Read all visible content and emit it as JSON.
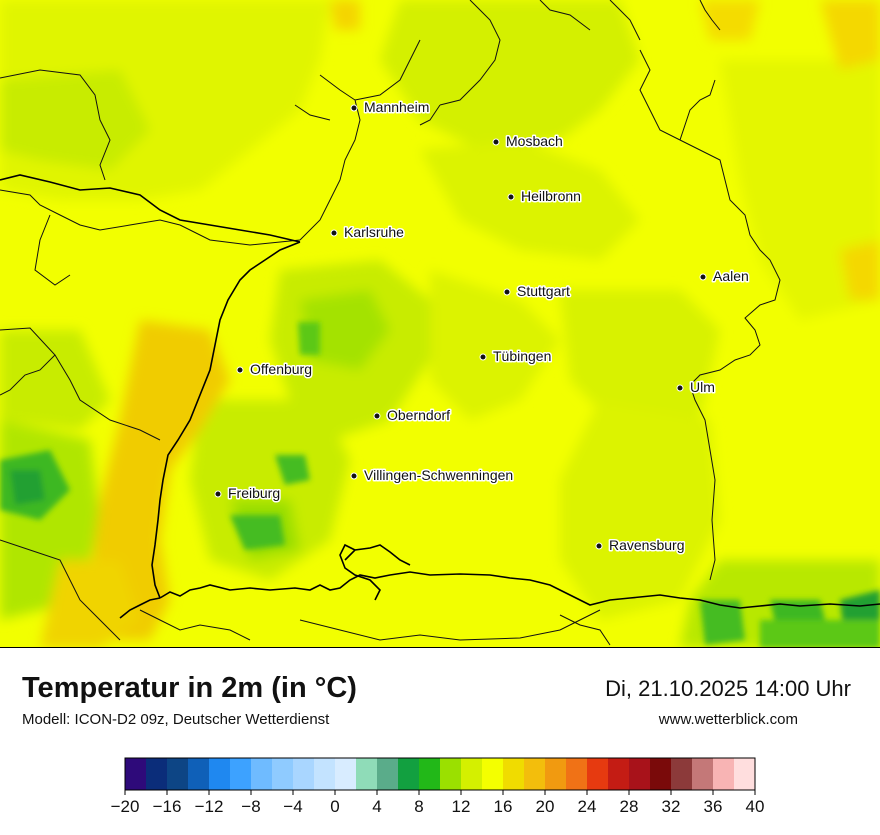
{
  "map": {
    "cities": [
      {
        "name": "Mannheim"
      },
      {
        "name": "Mosbach"
      },
      {
        "name": "Heilbronn"
      },
      {
        "name": "Karlsruhe"
      },
      {
        "name": "Aalen"
      },
      {
        "name": "Stuttgart"
      },
      {
        "name": "Tübingen"
      },
      {
        "name": "Offenburg"
      },
      {
        "name": "Ulm"
      },
      {
        "name": "Oberndorf"
      },
      {
        "name": "Villingen-Schwenningen"
      },
      {
        "name": "Freiburg"
      },
      {
        "name": "Ravensburg"
      }
    ]
  },
  "header": {
    "title": "Temperatur in 2m (in °C)",
    "subtitle": "Modell: ICON-D2 09z, Deutscher Wetterdienst",
    "datetime": "Di, 21.10.2025 14:00 Uhr",
    "website": "www.wetterblick.com"
  },
  "legend": {
    "unit": "°C",
    "min": -20,
    "max": 40,
    "step": 2,
    "colors": [
      "#2e0a7a",
      "#0b2d7a",
      "#0d4585",
      "#0f60b8",
      "#1f88f0",
      "#3da2ff",
      "#6fbbff",
      "#8fcbff",
      "#a9d6ff",
      "#c3e3ff",
      "#d8ecff",
      "#8fdcb8",
      "#5aac8a",
      "#12a040",
      "#22b818",
      "#9be000",
      "#d4f000",
      "#f4ff00",
      "#f0dc00",
      "#f3be0c",
      "#f19a10",
      "#f07216",
      "#e63a10",
      "#c41c14",
      "#a8121a",
      "#7a0a0a",
      "#8c3a3a",
      "#c47878",
      "#f8b4b4",
      "#ffdede"
    ],
    "tick_labels": [
      "−20",
      "−16",
      "−12",
      "−8",
      "−4",
      "0",
      "4",
      "8",
      "12",
      "16",
      "20",
      "24",
      "28",
      "32",
      "36",
      "40"
    ]
  }
}
